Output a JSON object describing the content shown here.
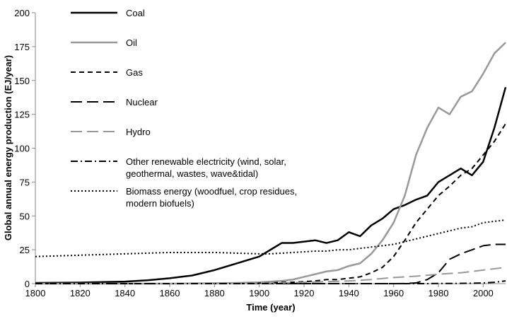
{
  "chart_data": {
    "type": "line",
    "xlabel": "Time (year)",
    "ylabel": "Global annual energy production (EJ/year)",
    "x": [
      1800,
      1820,
      1840,
      1850,
      1860,
      1870,
      1880,
      1890,
      1900,
      1905,
      1910,
      1915,
      1920,
      1925,
      1930,
      1935,
      1940,
      1945,
      1950,
      1955,
      1960,
      1965,
      1970,
      1975,
      1980,
      1985,
      1990,
      1995,
      2000,
      2005,
      2010
    ],
    "xlim": [
      1800,
      2010
    ],
    "xticks": [
      1800,
      1820,
      1840,
      1860,
      1880,
      1900,
      1920,
      1940,
      1960,
      1980,
      2000
    ],
    "ylim": [
      0,
      200
    ],
    "yticks": [
      0,
      25,
      50,
      75,
      100,
      125,
      150,
      175,
      200
    ],
    "series": [
      {
        "name": "Coal",
        "color": "#000000",
        "width": 2.5,
        "dash": "none",
        "values": [
          0.5,
          0.8,
          1.5,
          2.5,
          4,
          6,
          10,
          15,
          20,
          25,
          30,
          30,
          31,
          32,
          30,
          32,
          38,
          35,
          43,
          48,
          55,
          58,
          62,
          65,
          75,
          80,
          85,
          80,
          90,
          115,
          145
        ]
      },
      {
        "name": "Oil",
        "color": "#999999",
        "width": 2.5,
        "dash": "none",
        "values": [
          0,
          0,
          0,
          0,
          0,
          0.2,
          0.3,
          0.5,
          1,
          1.5,
          2,
          3,
          5,
          7,
          9,
          10,
          13,
          15,
          22,
          32,
          45,
          65,
          95,
          115,
          130,
          125,
          138,
          142,
          155,
          170,
          178
        ]
      },
      {
        "name": "Gas",
        "color": "#000000",
        "width": 2,
        "dash": "7,5",
        "values": [
          0,
          0,
          0,
          0,
          0,
          0,
          0,
          0,
          0.3,
          0.5,
          1,
          1,
          1.5,
          2,
          3,
          3,
          4,
          5,
          8,
          12,
          20,
          32,
          45,
          55,
          65,
          72,
          80,
          85,
          95,
          105,
          118
        ]
      },
      {
        "name": "Nuclear",
        "color": "#000000",
        "width": 2,
        "dash": "16,7",
        "values": [
          0,
          0,
          0,
          0,
          0,
          0,
          0,
          0,
          0,
          0,
          0,
          0,
          0,
          0,
          0,
          0,
          0,
          0,
          0,
          0,
          0,
          0.1,
          0.5,
          3,
          8,
          18,
          22,
          25,
          28,
          29,
          29
        ]
      },
      {
        "name": "Hydro",
        "color": "#999999",
        "width": 2,
        "dash": "16,7",
        "values": [
          0,
          0,
          0,
          0,
          0,
          0,
          0,
          0,
          0.2,
          0.3,
          0.5,
          0.7,
          1,
          1.2,
          1.5,
          1.7,
          2,
          2.5,
          3,
          3.8,
          4.5,
          5,
          5.5,
          6.2,
          7,
          7.5,
          8,
          9,
          10,
          11,
          12
        ]
      },
      {
        "name": "Other renewable electricity (wind, solar, geothermal, wastes, wave&tidal)",
        "color": "#000000",
        "width": 2,
        "dash": "10,4,2,4",
        "values": [
          0,
          0,
          0,
          0,
          0,
          0,
          0,
          0,
          0,
          0,
          0,
          0,
          0,
          0,
          0,
          0,
          0,
          0,
          0,
          0,
          0,
          0,
          0,
          0,
          0.1,
          0.1,
          0.2,
          0.3,
          0.5,
          1,
          2
        ]
      },
      {
        "name": "Biomass energy (woodfuel, crop residues, modern biofuels)",
        "color": "#000000",
        "width": 2,
        "dash": "2,3",
        "values": [
          20,
          21,
          22,
          22.5,
          23,
          23,
          23,
          22.5,
          22,
          22,
          22.5,
          23,
          23.5,
          24,
          24,
          25,
          25,
          26,
          27,
          28,
          29,
          31,
          33,
          35,
          37,
          39,
          41,
          42,
          45,
          46,
          47
        ]
      }
    ]
  }
}
